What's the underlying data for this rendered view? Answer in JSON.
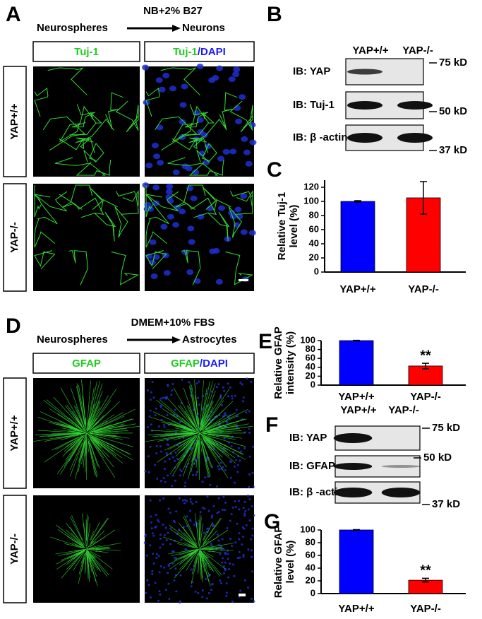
{
  "figure": {
    "panel_labels": [
      "A",
      "B",
      "C",
      "D",
      "E",
      "F",
      "G"
    ],
    "a": {
      "medium": "NB+2% B27",
      "from": "Neurospheres",
      "to": "Neurons",
      "columns": [
        [
          "Tuj-1"
        ],
        [
          "Tuj-1",
          "/DAPI"
        ]
      ],
      "rows": [
        "YAP+/+",
        "YAP-/-"
      ]
    },
    "b": {
      "lanes": [
        "YAP+/+",
        "YAP-/-"
      ],
      "blots": [
        "IB: YAP",
        "IB: Tuj-1",
        "IB: β -actin"
      ],
      "markers": [
        "75 kD",
        "50 kD",
        "37 kD"
      ]
    },
    "d": {
      "medium": "DMEM+10% FBS",
      "from": "Neurospheres",
      "to": "Astrocytes",
      "columns": [
        [
          "GFAP"
        ],
        [
          "GFAP",
          "/DAPI"
        ]
      ],
      "rows": [
        "YAP+/+",
        "YAP-/-"
      ]
    },
    "f": {
      "lanes": [
        "YAP+/+",
        "YAP-/-"
      ],
      "blots": [
        "IB: YAP",
        "IB: GFAP",
        "IB: β -actin"
      ],
      "markers": [
        "75 kD",
        "50 kD",
        "37 kD"
      ]
    }
  },
  "chart_data": [
    {
      "type": "bar",
      "y_label": [
        "Relative Tuj-1",
        "level (%)"
      ],
      "categories": [
        "YAP+/+",
        "YAP-/-"
      ],
      "values": [
        100,
        105
      ],
      "errors": [
        1,
        23
      ],
      "colors": [
        "#0000ff",
        "#ff0000"
      ],
      "ylim": [
        0,
        130
      ],
      "yticks": [
        0,
        20,
        40,
        60,
        80,
        100,
        120
      ]
    },
    {
      "type": "bar",
      "y_label": [
        "Relative GFAP",
        "intensity (%)"
      ],
      "categories": [
        "YAP+/+",
        "YAP-/-"
      ],
      "values": [
        100,
        43
      ],
      "errors": [
        0.5,
        6
      ],
      "colors": [
        "#0000ff",
        "#ff0000"
      ],
      "ylim": [
        0,
        100
      ],
      "yticks": [
        0,
        20,
        40,
        60,
        80,
        100
      ],
      "annotations": [
        {
          "category": "YAP-/-",
          "text": "**"
        }
      ]
    },
    {
      "type": "bar",
      "y_label": [
        "Relative GFAP",
        "level (%)"
      ],
      "categories": [
        "YAP+/+",
        "YAP-/-"
      ],
      "values": [
        100,
        21
      ],
      "errors": [
        0.5,
        3
      ],
      "colors": [
        "#0000ff",
        "#ff0000"
      ],
      "ylim": [
        0,
        100
      ],
      "yticks": [
        0,
        20,
        40,
        60,
        80,
        100
      ],
      "annotations": [
        {
          "category": "YAP-/-",
          "text": "**"
        }
      ]
    }
  ]
}
